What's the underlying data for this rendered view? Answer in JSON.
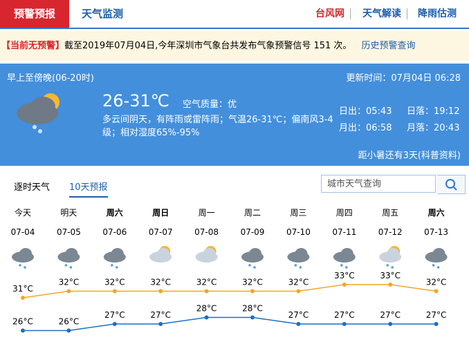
{
  "nav": {
    "tabs": [
      "预警预报",
      "天气监测"
    ],
    "links": [
      "台风网",
      "天气解读",
      "降雨估测"
    ]
  },
  "alert": {
    "status": "【当前无预警】",
    "text": "截至2019年07月04日,今年深圳市气象台共发布气象预警信号 151 次。",
    "link": "历史预警查询"
  },
  "today": {
    "period": "早上至傍晚(06-20时)",
    "updated": "更新时间：07月04日 06:28",
    "temp": "26-31℃",
    "air": "空气质量：优",
    "desc": "多云间阴天，有阵雨或雷阵雨；气温26-31℃；偏南风3-4级；相对湿度65%-95%",
    "sun": [
      "日出：05:43",
      "日落：19:12",
      "月出：06:58",
      "月落：20:43"
    ],
    "solar_term": "距小暑还有3天(科普资料)"
  },
  "tabs": [
    "逐时天气",
    "10天预报"
  ],
  "search": "城市天气查询",
  "forecast": {
    "days": [
      "今天",
      "明天",
      "周六",
      "周日",
      "周一",
      "周二",
      "周三",
      "周四",
      "周五",
      "周六"
    ],
    "dates": [
      "07-04",
      "07-05",
      "07-06",
      "07-07",
      "07-08",
      "07-09",
      "07-10",
      "07-11",
      "07-12",
      "07-13"
    ],
    "high": {
      "color": "#f5a623",
      "values": [
        31,
        32,
        32,
        32,
        32,
        32,
        32,
        33,
        33,
        32
      ],
      "value_labels": [
        "31°C",
        "32°C",
        "32°C",
        "32°C",
        "32°C",
        "32°C",
        "32°C",
        "33°C",
        "33°C",
        "32°C"
      ]
    },
    "low": {
      "color": "#1c6fc4",
      "values": [
        26,
        26,
        27,
        27,
        28,
        28,
        27,
        27,
        27,
        27
      ],
      "value_labels": [
        "26°C",
        "26°C",
        "27°C",
        "27°C",
        "28°C",
        "28°C",
        "27°C",
        "27°C",
        "27°C",
        "27°C"
      ]
    }
  }
}
